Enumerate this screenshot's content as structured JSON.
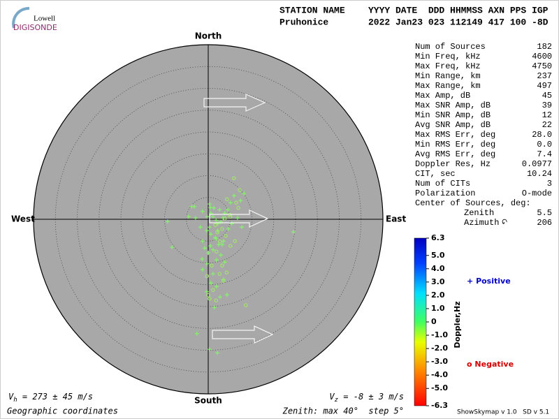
{
  "logo": {
    "top": "Lowell",
    "bottom": "DIGISONDE"
  },
  "header": {
    "station_label": "STATION NAME",
    "fields_label": "YYYY DATE  DDD HHMMSS AXN PPS IGP",
    "station": "Pruhonice",
    "fields": "2022 Jan23 023 112149 417 100 -8D"
  },
  "chart_data": {
    "type": "polar_scatter",
    "directions": {
      "north": "North",
      "south": "South",
      "east": "East",
      "west": "West"
    },
    "xlim": [
      -40,
      40
    ],
    "ylim": [
      -40,
      40
    ],
    "rticks": [
      5,
      10,
      15,
      20,
      25,
      30,
      35,
      40
    ],
    "series": [
      {
        "name": "Positive",
        "marker": "+",
        "color": "#80ff60",
        "x": [
          0.3,
          0.5,
          0.6,
          1.1,
          1.8,
          2.2,
          0.3,
          -0.3,
          0.6,
          1.6,
          2.2,
          2.9,
          3.4,
          3.8,
          4.5,
          5.1,
          5.9,
          8.2,
          7.4,
          7.7,
          6.7,
          5.4,
          4.6,
          3.5,
          2.4,
          1.1,
          0.0,
          -0.8,
          -1.3,
          -1.8,
          -2.9,
          -3.8,
          -8.3,
          -9.3,
          -1.4,
          -0.3,
          -1.3,
          1.1,
          0.6,
          -0.3,
          1.9,
          3.5,
          2.7,
          1.4,
          4.3,
          -2.6,
          0.3,
          2.1,
          1.8,
          3.2,
          0.5,
          1.9,
          2.9,
          3.8,
          19.5,
          -3.2,
          -4.5,
          -1.3,
          1.3,
          2.6,
          -0.2
        ],
        "y": [
          3.5,
          2.7,
          1.4,
          0.6,
          -0.2,
          -1.0,
          -1.8,
          -2.6,
          -3.4,
          -4.2,
          -2.6,
          -0.6,
          0.3,
          1.4,
          2.2,
          3.8,
          5.4,
          5.9,
          4.3,
          -1.8,
          0.3,
          -1.0,
          -2.2,
          -5.0,
          -5.8,
          -7.0,
          -7.7,
          -6.6,
          -5.0,
          -1.8,
          0.3,
          2.9,
          -6.4,
          -0.5,
          -9.1,
          -10.2,
          -11.5,
          -12.5,
          -14.6,
          -16.6,
          -15.4,
          -13.8,
          -17.8,
          -20.2,
          -17.3,
          -26.2,
          -29.8,
          -30.6,
          -4.5,
          -5.8,
          -6.1,
          -9.3,
          -8.2,
          -9.8,
          -2.9,
          2.9,
          0.6,
          1.8,
          2.6,
          2.2,
          0.6
        ]
      },
      {
        "name": "Negative",
        "marker": "o",
        "color": "#a0f060",
        "x": [
          5.9,
          6.4,
          6.9,
          5.0,
          3.2,
          4.0,
          2.7,
          5.1,
          1.9,
          3.2,
          4.2,
          3.5,
          1.1,
          0.0,
          1.8,
          0.3,
          8.6,
          6.1,
          1.6,
          2.1,
          -0.3,
          0.8,
          2.6,
          5.1,
          7.2,
          3.8,
          4.3
        ],
        "y": [
          9.4,
          3.8,
          2.6,
          1.0,
          -2.2,
          -3.8,
          -5.1,
          -6.1,
          -7.4,
          -10.6,
          -12.2,
          -14.1,
          -16.2,
          -17.4,
          -18.6,
          -18.2,
          -19.7,
          -5.0,
          -1.3,
          -3.0,
          -13.0,
          -10.6,
          -12.5,
          0.6,
          6.7,
          0.2,
          4.6
        ]
      }
    ],
    "colorbar": {
      "label": "Doppler,Hz",
      "lim": [
        -6.3,
        6.3
      ],
      "ticks": [
        6.3,
        {
          "value": 5,
          "label": "5.0"
        },
        {
          "value": 4,
          "label": "4.0"
        },
        {
          "value": 3,
          "label": "3.0"
        },
        {
          "value": 2,
          "label": "2.0"
        },
        {
          "value": 1,
          "label": "1.0"
        },
        0,
        {
          "value": -1,
          "label": "-1.0"
        },
        {
          "value": -2,
          "label": "-2.0"
        },
        {
          "value": -3,
          "label": "-3.0"
        },
        {
          "value": -4,
          "label": "-4.0"
        },
        {
          "value": -5,
          "label": "-5.0"
        },
        -6.3
      ]
    }
  },
  "stats": [
    {
      "label": "Num of Sources",
      "value": "182"
    },
    {
      "label": "Min Freq, kHz",
      "value": "4600"
    },
    {
      "label": "Max Freq, kHz",
      "value": "4750"
    },
    {
      "label": "Min Range, km",
      "value": "237"
    },
    {
      "label": "Max Range, km",
      "value": "497"
    },
    {
      "label": "Max Amp, dB",
      "value": "45"
    },
    {
      "label": "Max SNR Amp, dB",
      "value": "39"
    },
    {
      "label": "Min SNR Amp, dB",
      "value": "12"
    },
    {
      "label": "Avg SNR Amp, dB",
      "value": "22"
    },
    {
      "label": "Max RMS Err, deg",
      "value": "28.0"
    },
    {
      "label": "Min RMS Err, deg",
      "value": "0.0"
    },
    {
      "label": "Avg RMS Err, deg",
      "value": "7.4"
    },
    {
      "label": "Doppler Res, Hz",
      "value": "0.0977"
    },
    {
      "label": "CIT, sec",
      "value": "10.24"
    },
    {
      "label": "Num of CITs",
      "value": "3"
    },
    {
      "label": "Polarization",
      "value": "O-mode"
    }
  ],
  "center_of_sources": {
    "label": "Center of Sources, deg:",
    "rows": [
      {
        "label": "Zenith",
        "value": "5.5"
      },
      {
        "label": "Azimuth",
        "value": "206"
      }
    ]
  },
  "velocity": {
    "horizontal": {
      "symbol": "V",
      "sub": "h",
      "text": " = 273 ± 45 m/s"
    },
    "vertical": {
      "symbol": "V",
      "sub": "z",
      "text": " = -8 ± 3 m/s"
    }
  },
  "footer": {
    "coordinates": "Geographic coordinates",
    "zenith": "Zenith: max 40°  step 5°",
    "version": "ShowSkymap v 1.0   SD v 5.1"
  }
}
